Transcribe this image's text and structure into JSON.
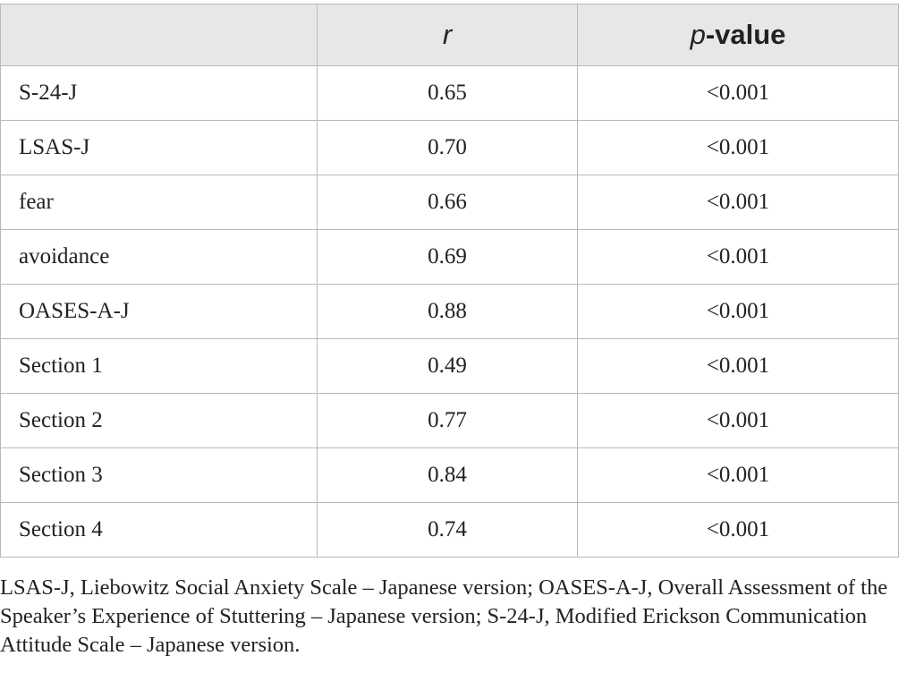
{
  "table": {
    "headers": {
      "col1": "",
      "col2": "r",
      "col3_italic": "p",
      "col3_rest": "-value"
    },
    "rows": [
      {
        "label": "S-24-J",
        "r": "0.65",
        "p": "<0.001"
      },
      {
        "label": "LSAS-J",
        "r": "0.70",
        "p": "<0.001"
      },
      {
        "label": "fear",
        "r": "0.66",
        "p": "<0.001"
      },
      {
        "label": "avoidance",
        "r": "0.69",
        "p": "<0.001"
      },
      {
        "label": "OASES-A-J",
        "r": "0.88",
        "p": "<0.001"
      },
      {
        "label": "Section 1",
        "r": "0.49",
        "p": "<0.001"
      },
      {
        "label": "Section 2",
        "r": "0.77",
        "p": "<0.001"
      },
      {
        "label": "Section 3",
        "r": "0.84",
        "p": "<0.001"
      },
      {
        "label": "Section 4",
        "r": "0.74",
        "p": "<0.001"
      }
    ]
  },
  "footnote": "LSAS-J, Liebowitz Social Anxiety Scale – Japanese version; OASES-A-J, Overall Assessment of the Speaker’s Experience of Stuttering – Japanese version; S-24-J, Modified Erickson Communication Attitude Scale – Japanese version.",
  "colors": {
    "header_background": "#e6e7e8",
    "border": "#b9b9b9",
    "text": "#222222"
  }
}
